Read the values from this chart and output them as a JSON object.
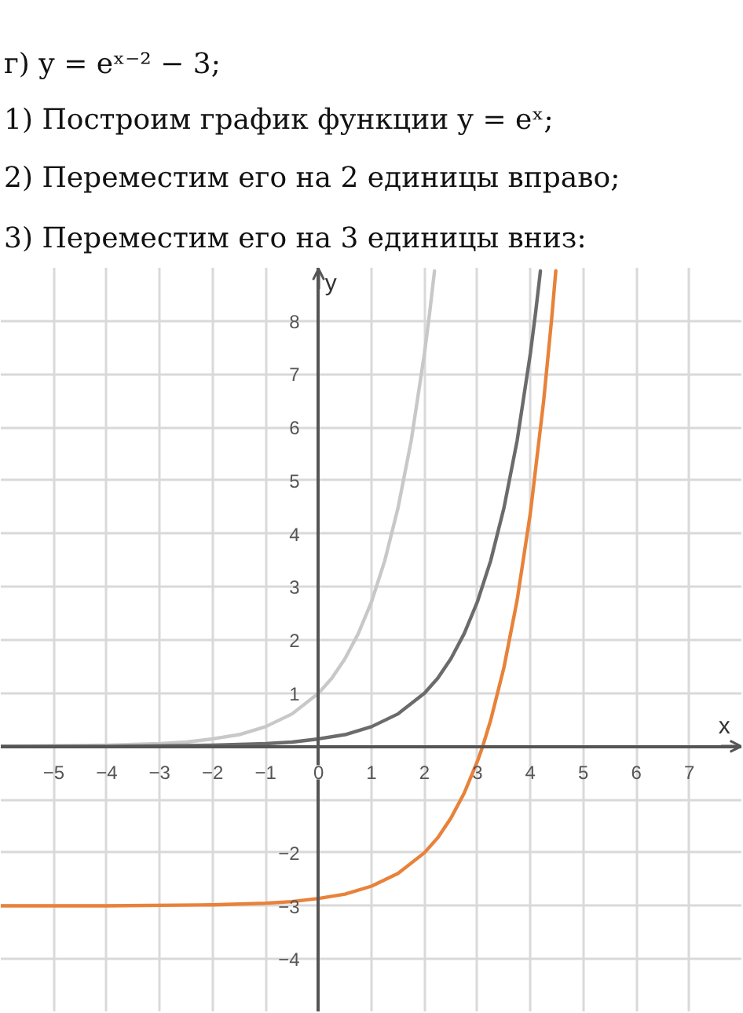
{
  "chart_data": {
    "type": "line",
    "title": "г) y = eˣ⁻² − 3;",
    "annotations": [
      "1) Построим график функции y = eˣ;",
      "2) Переместим его на 2 единицы вправо;",
      "3) Переместим его на 3 единицы вниз:"
    ],
    "xlabel": "x",
    "ylabel": "y",
    "xlim": [
      -6,
      8
    ],
    "ylim": [
      -5,
      9
    ],
    "xticks": [
      {
        "value": -5,
        "label": "−5"
      },
      {
        "value": -4,
        "label": "−4"
      },
      {
        "value": -3,
        "label": "−3"
      },
      {
        "value": -2,
        "label": "−2"
      },
      {
        "value": -1,
        "label": "−1"
      },
      0,
      1,
      2,
      3,
      4,
      5,
      6,
      7
    ],
    "yticks": [
      {
        "value": -4,
        "label": "−4"
      },
      {
        "value": -3,
        "label": "−3"
      },
      {
        "value": -2,
        "label": "−2"
      },
      {
        "value": -1,
        "label": null
      },
      1,
      2,
      3,
      4,
      5,
      6,
      7,
      8
    ],
    "grid": true,
    "series": [
      {
        "color": "#c8c8c8",
        "x": [
          -6,
          -5,
          -4,
          -3,
          -2.5,
          -2,
          -1.5,
          -1,
          -0.5,
          0,
          0.25,
          0.5,
          0.75,
          1,
          1.25,
          1.5,
          1.75,
          2,
          2.1,
          2.19
        ],
        "values": [
          0.0,
          0.01,
          0.02,
          0.05,
          0.08,
          0.14,
          0.22,
          0.37,
          0.61,
          1.0,
          1.28,
          1.65,
          2.12,
          2.72,
          3.49,
          4.48,
          5.75,
          7.39,
          8.17,
          8.94
        ]
      },
      {
        "color": "#6b6b6b",
        "x": [
          -6,
          -4,
          -2,
          -1,
          -0.5,
          0,
          0.5,
          1,
          1.5,
          2,
          2.25,
          2.5,
          2.75,
          3,
          3.25,
          3.5,
          3.75,
          4,
          4.1,
          4.19
        ],
        "values": [
          0.0,
          0.0,
          0.02,
          0.05,
          0.08,
          0.14,
          0.22,
          0.37,
          0.61,
          1.0,
          1.28,
          1.65,
          2.12,
          2.72,
          3.49,
          4.48,
          5.75,
          7.39,
          8.17,
          8.94
        ]
      },
      {
        "color": "#e8823a",
        "x": [
          -6,
          -4,
          -2,
          -1,
          -0.5,
          0,
          0.5,
          1,
          1.5,
          2,
          2.25,
          2.5,
          2.75,
          3,
          3.1,
          3.25,
          3.5,
          3.75,
          4,
          4.25,
          4.4,
          4.48
        ],
        "values": [
          -3.0,
          -3.0,
          -2.98,
          -2.95,
          -2.92,
          -2.86,
          -2.78,
          -2.63,
          -2.39,
          -2.0,
          -1.72,
          -1.35,
          -0.88,
          -0.28,
          0.0,
          0.49,
          1.48,
          2.75,
          4.39,
          6.49,
          8.02,
          8.94
        ]
      }
    ]
  }
}
